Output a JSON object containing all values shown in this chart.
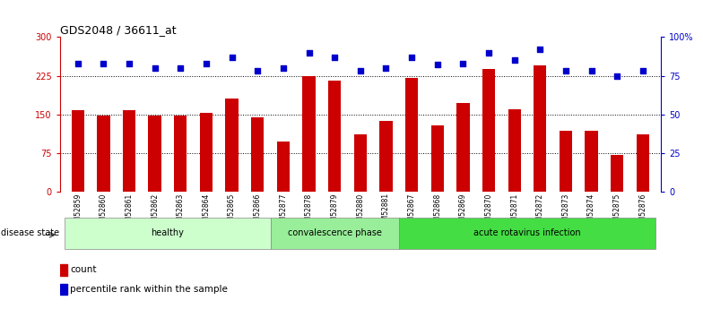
{
  "title": "GDS2048 / 36611_at",
  "samples": [
    "GSM52859",
    "GSM52860",
    "GSM52861",
    "GSM52862",
    "GSM52863",
    "GSM52864",
    "GSM52865",
    "GSM52866",
    "GSM52877",
    "GSM52878",
    "GSM52879",
    "GSM52880",
    "GSM52881",
    "GSM52867",
    "GSM52868",
    "GSM52869",
    "GSM52870",
    "GSM52871",
    "GSM52872",
    "GSM52873",
    "GSM52874",
    "GSM52875",
    "GSM52876"
  ],
  "counts": [
    158,
    148,
    158,
    148,
    148,
    152,
    180,
    145,
    97,
    225,
    215,
    112,
    138,
    220,
    128,
    172,
    238,
    160,
    245,
    118,
    118,
    72,
    112
  ],
  "percentiles": [
    83,
    83,
    83,
    80,
    80,
    83,
    87,
    78,
    80,
    90,
    87,
    78,
    80,
    87,
    82,
    83,
    90,
    85,
    92,
    78,
    78,
    75,
    78
  ],
  "groups": {
    "healthy": [
      0,
      8
    ],
    "convalescence phase": [
      8,
      13
    ],
    "acute rotavirus infection": [
      13,
      23
    ]
  },
  "group_colors": {
    "healthy": "#ccffcc",
    "convalescence phase": "#99ee99",
    "acute rotavirus infection": "#44dd44"
  },
  "bar_color": "#cc0000",
  "dot_color": "#0000cc",
  "ylim_left": [
    0,
    300
  ],
  "ylim_right": [
    0,
    100
  ],
  "yticks_left": [
    0,
    75,
    150,
    225,
    300
  ],
  "yticks_right": [
    0,
    25,
    50,
    75,
    100
  ],
  "grid_values": [
    75,
    150,
    225
  ],
  "background_color": "#ffffff"
}
